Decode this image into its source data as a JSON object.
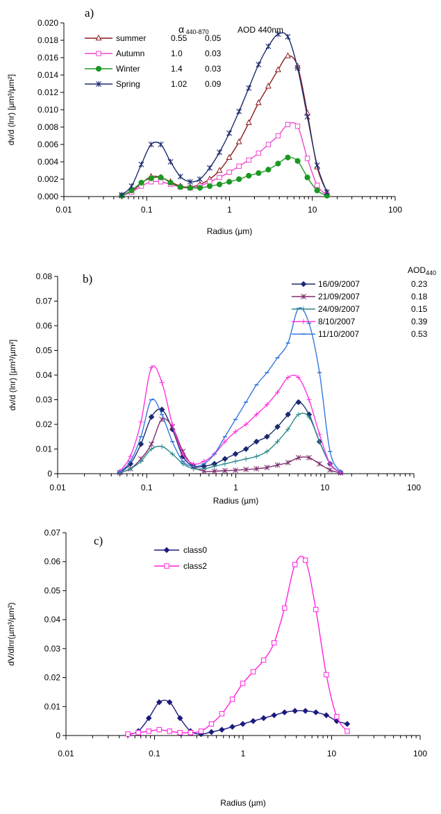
{
  "chart_data": [
    {
      "type": "line",
      "panel_label": "a)",
      "xlabel": "Radius (μm)",
      "ylabel": "dv/d (lnr) [μm³/μm²]",
      "x_scale": "log",
      "xlim": [
        0.01,
        100
      ],
      "x_ticks": [
        "0.01",
        "0.1",
        "1",
        "10",
        "100"
      ],
      "ylim": [
        0,
        0.02
      ],
      "y_ticks": [
        "0.000",
        "0.002",
        "0.004",
        "0.006",
        "0.008",
        "0.010",
        "0.012",
        "0.014",
        "0.016",
        "0.018",
        "0.020"
      ],
      "legend_headers": {
        "alpha": "α",
        "alpha_sub": "440-870",
        "aod": "AOD 440nm"
      },
      "x": [
        0.05,
        0.0656,
        0.0861,
        0.113,
        0.148,
        0.194,
        0.255,
        0.335,
        0.439,
        0.576,
        0.756,
        0.992,
        1.302,
        1.708,
        2.241,
        2.94,
        3.857,
        5.06,
        6.64,
        8.71,
        11.43,
        15.0
      ],
      "series": [
        {
          "name": "summer",
          "alpha": "0.55",
          "aod": "0.05",
          "color": "#8b1a1a",
          "marker": "triangle",
          "values": [
            0.0001,
            0.0006,
            0.0015,
            0.0023,
            0.0022,
            0.0017,
            0.0012,
            0.0011,
            0.0014,
            0.002,
            0.003,
            0.0045,
            0.0063,
            0.0085,
            0.0108,
            0.0127,
            0.0146,
            0.0162,
            0.015,
            0.0096,
            0.0034,
            0.0005
          ]
        },
        {
          "name": "Autumn",
          "alpha": "1.0",
          "aod": "0.03",
          "color": "#ee44cc",
          "marker": "square",
          "values": [
            0.0001,
            0.0005,
            0.0012,
            0.0017,
            0.0017,
            0.0014,
            0.0011,
            0.001,
            0.0012,
            0.0017,
            0.0022,
            0.0028,
            0.0035,
            0.0042,
            0.005,
            0.006,
            0.007,
            0.0083,
            0.0081,
            0.0044,
            0.0013,
            0.0002
          ]
        },
        {
          "name": "Winter",
          "alpha": "1.4",
          "aod": "0.03",
          "color": "#1a9922",
          "marker": "circle",
          "values": [
            0.0001,
            0.0007,
            0.0016,
            0.0021,
            0.0022,
            0.0016,
            0.0011,
            0.001,
            0.001,
            0.0012,
            0.0014,
            0.0017,
            0.002,
            0.0024,
            0.0027,
            0.0031,
            0.0038,
            0.0045,
            0.0041,
            0.0022,
            0.0007,
            0.0001
          ]
        },
        {
          "name": "Spring",
          "alpha": "1.02",
          "aod": "0.09",
          "color": "#1a2a6e",
          "marker": "star",
          "values": [
            0.0002,
            0.0012,
            0.0037,
            0.006,
            0.006,
            0.004,
            0.0023,
            0.0017,
            0.002,
            0.0033,
            0.0051,
            0.0073,
            0.0098,
            0.0125,
            0.0152,
            0.0173,
            0.0187,
            0.0184,
            0.0148,
            0.0092,
            0.0036,
            0.0005
          ]
        }
      ]
    },
    {
      "type": "line",
      "panel_label": "b)",
      "xlabel": "Radius (µm)",
      "ylabel": "dv/d (lnr) [µm³/µm²]",
      "x_scale": "log",
      "xlim": [
        0.01,
        100
      ],
      "x_ticks": [
        "0.01",
        "0.1",
        "1",
        "10",
        "100"
      ],
      "ylim": [
        0,
        0.08
      ],
      "y_ticks": [
        "0",
        "0.01",
        "0.02",
        "0.03",
        "0.04",
        "0.05",
        "0.06",
        "0.07",
        "0.08"
      ],
      "legend_header": "AOD",
      "legend_header_sub": "440",
      "x": [
        0.05,
        0.0656,
        0.0861,
        0.113,
        0.148,
        0.194,
        0.255,
        0.335,
        0.439,
        0.576,
        0.756,
        0.992,
        1.302,
        1.708,
        2.241,
        2.94,
        3.857,
        5.06,
        6.64,
        8.71,
        11.43,
        15.0
      ],
      "series": [
        {
          "name": "16/09/2007",
          "aod": "0.23",
          "color": "#1a2a6e",
          "marker": "diamond",
          "values": [
            0.0005,
            0.004,
            0.012,
            0.023,
            0.026,
            0.018,
            0.007,
            0.003,
            0.003,
            0.004,
            0.006,
            0.008,
            0.01,
            0.013,
            0.015,
            0.019,
            0.024,
            0.029,
            0.024,
            0.013,
            0.004,
            0.0005
          ]
        },
        {
          "name": "21/09/2007",
          "aod": "0.18",
          "color": "#7d2a6e",
          "marker": "asterisk",
          "values": [
            0.0004,
            0.002,
            0.006,
            0.012,
            0.022,
            0.019,
            0.009,
            0.003,
            0.001,
            0.001,
            0.0012,
            0.0014,
            0.0017,
            0.002,
            0.0025,
            0.0035,
            0.0045,
            0.0065,
            0.0065,
            0.004,
            0.0015,
            0.0003
          ]
        },
        {
          "name": "24/09/2007",
          "aod": "0.15",
          "color": "#2a8a8a",
          "marker": "plus",
          "values": [
            0.0004,
            0.002,
            0.005,
            0.01,
            0.011,
            0.008,
            0.004,
            0.002,
            0.002,
            0.003,
            0.004,
            0.005,
            0.006,
            0.007,
            0.009,
            0.013,
            0.018,
            0.024,
            0.023,
            0.013,
            0.004,
            0.0005
          ]
        },
        {
          "name": "8/10/2007",
          "aod": "0.39",
          "color": "#ff33dd",
          "marker": "plus",
          "values": [
            0.001,
            0.007,
            0.021,
            0.043,
            0.037,
            0.02,
            0.008,
            0.004,
            0.005,
            0.008,
            0.013,
            0.017,
            0.02,
            0.024,
            0.028,
            0.033,
            0.039,
            0.039,
            0.03,
            0.016,
            0.004,
            0.0005
          ]
        },
        {
          "name": "11/10/2007",
          "aod": "0.53",
          "color": "#3377dd",
          "marker": "dash",
          "values": [
            0.0007,
            0.005,
            0.015,
            0.03,
            0.024,
            0.013,
            0.005,
            0.003,
            0.004,
            0.008,
            0.015,
            0.022,
            0.029,
            0.036,
            0.041,
            0.047,
            0.053,
            0.067,
            0.061,
            0.041,
            0.009,
            0.0008
          ]
        }
      ]
    },
    {
      "type": "line",
      "panel_label": "c)",
      "xlabel": "Radius (µm)",
      "ylabel": "dV/dlnr(µm³/µm²)",
      "x_scale": "log",
      "xlim": [
        0.01,
        100
      ],
      "x_ticks": [
        "0.01",
        "0.1",
        "1",
        "10",
        "100"
      ],
      "ylim": [
        0,
        0.07
      ],
      "y_ticks": [
        "0",
        "0.01",
        "0.02",
        "0.03",
        "0.04",
        "0.05",
        "0.06",
        "0.07"
      ],
      "x": [
        0.05,
        0.0656,
        0.0861,
        0.113,
        0.148,
        0.194,
        0.255,
        0.335,
        0.439,
        0.576,
        0.756,
        0.992,
        1.302,
        1.708,
        2.241,
        2.94,
        3.857,
        5.06,
        6.64,
        8.71,
        11.43,
        15.0
      ],
      "series": [
        {
          "name": "class0",
          "color": "#1a1a7e",
          "marker": "diamond",
          "values": [
            0.0003,
            0.0015,
            0.006,
            0.0115,
            0.0115,
            0.006,
            0.0015,
            0.0005,
            0.0012,
            0.002,
            0.003,
            0.004,
            0.005,
            0.006,
            0.007,
            0.008,
            0.0085,
            0.0085,
            0.008,
            0.007,
            0.005,
            0.004
          ]
        },
        {
          "name": "class2",
          "color": "#ff22dd",
          "marker": "square",
          "values": [
            0.0005,
            0.001,
            0.0015,
            0.002,
            0.0015,
            0.001,
            0.001,
            0.0015,
            0.004,
            0.0075,
            0.0125,
            0.018,
            0.022,
            0.026,
            0.032,
            0.044,
            0.059,
            0.0605,
            0.0435,
            0.021,
            0.0065,
            0.0015
          ]
        }
      ]
    }
  ]
}
